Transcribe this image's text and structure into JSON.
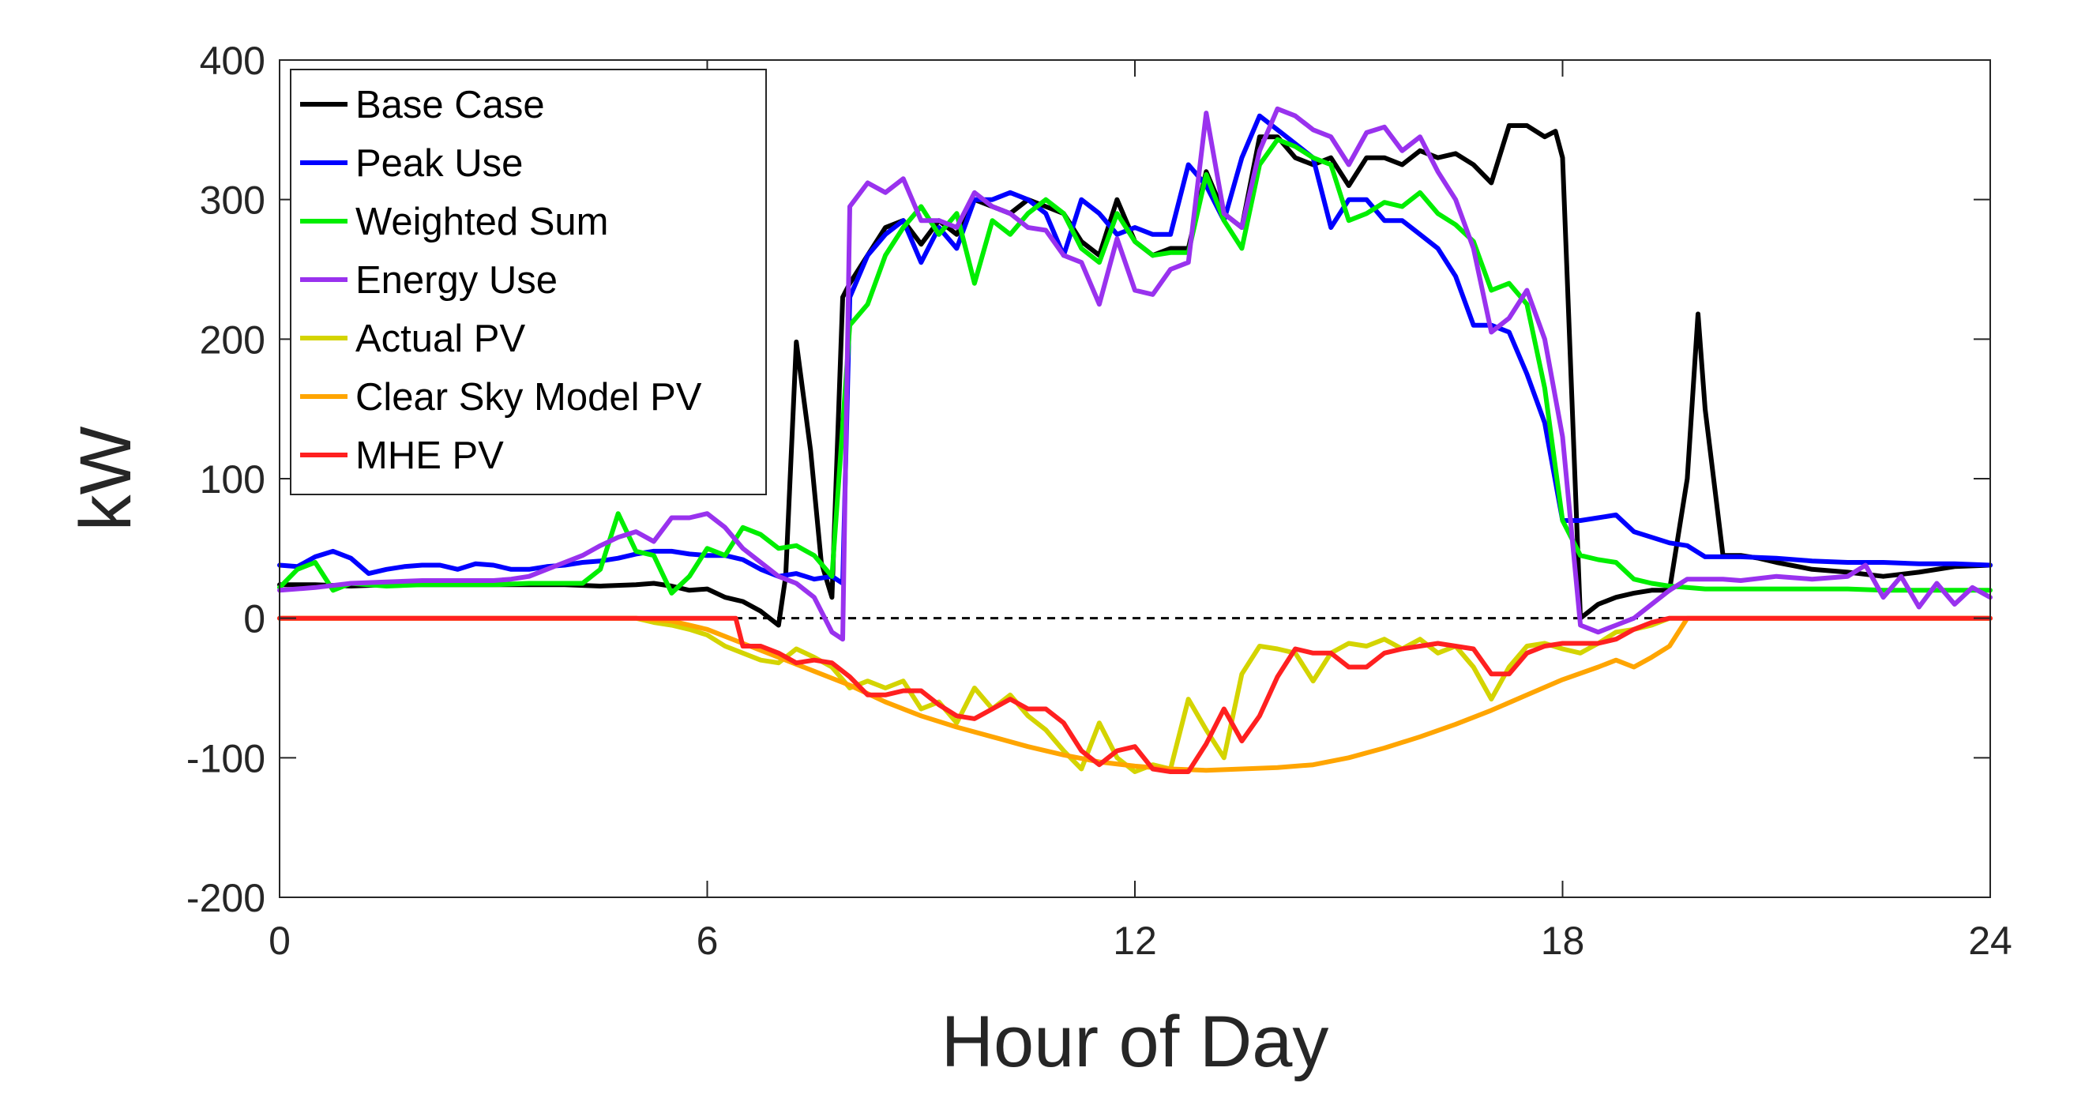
{
  "chart_data": {
    "type": "line",
    "xlabel": "Hour of Day",
    "ylabel": "kW",
    "xlim": [
      0,
      24
    ],
    "ylim": [
      -200,
      400
    ],
    "xticks": [
      0,
      6,
      12,
      18,
      24
    ],
    "xtick_labels": [
      "0",
      "6",
      "12",
      "18",
      "24"
    ],
    "yticks": [
      -200,
      -100,
      0,
      100,
      200,
      300,
      400
    ],
    "ytick_labels": [
      "-200",
      "-100",
      "0",
      "100",
      "200",
      "300",
      "400"
    ],
    "legend_position": "top-left",
    "zero_line": {
      "style": "dashed",
      "color": "#000000"
    },
    "series": [
      {
        "name": "Base Case",
        "color": "#000000",
        "x": [
          0,
          0.5,
          1,
          1.5,
          2,
          2.5,
          3,
          3.5,
          4,
          4.5,
          5,
          5.25,
          5.5,
          5.75,
          6,
          6.25,
          6.5,
          6.75,
          7,
          7.1,
          7.25,
          7.45,
          7.6,
          7.75,
          7.9,
          8,
          8.25,
          8.5,
          8.75,
          9,
          9.25,
          9.5,
          9.75,
          10,
          10.25,
          10.5,
          10.75,
          11,
          11.25,
          11.5,
          11.75,
          12,
          12.25,
          12.5,
          12.75,
          13,
          13.25,
          13.5,
          13.75,
          14,
          14.25,
          14.5,
          14.75,
          15,
          15.25,
          15.5,
          15.75,
          16,
          16.25,
          16.5,
          16.75,
          17,
          17.25,
          17.5,
          17.75,
          17.9,
          18,
          18.25,
          18.5,
          18.75,
          19,
          19.25,
          19.5,
          19.75,
          19.9,
          20,
          20.25,
          20.5,
          20.75,
          21,
          21.5,
          22,
          22.5,
          23,
          23.5,
          24
        ],
        "y": [
          24,
          24,
          23,
          24,
          24,
          24,
          24,
          24,
          24,
          23,
          24,
          25,
          23,
          20,
          21,
          15,
          12,
          5,
          -5,
          30,
          198,
          120,
          40,
          15,
          230,
          240,
          260,
          280,
          285,
          268,
          285,
          275,
          300,
          295,
          290,
          300,
          295,
          290,
          270,
          260,
          300,
          270,
          260,
          265,
          265,
          320,
          290,
          280,
          345,
          345,
          330,
          325,
          330,
          310,
          330,
          330,
          325,
          335,
          330,
          333,
          325,
          312,
          353,
          353,
          345,
          349,
          330,
          0,
          10,
          15,
          18,
          20,
          20,
          100,
          218,
          150,
          45,
          45,
          43,
          40,
          35,
          33,
          30,
          33,
          37,
          38
        ]
      },
      {
        "name": "Peak Use",
        "color": "#0000ff",
        "x": [
          0,
          0.25,
          0.5,
          0.75,
          1,
          1.25,
          1.5,
          1.75,
          2,
          2.25,
          2.5,
          2.75,
          3,
          3.25,
          3.5,
          3.75,
          4,
          4.25,
          4.5,
          4.75,
          5,
          5.25,
          5.5,
          5.75,
          6,
          6.25,
          6.5,
          6.75,
          7,
          7.25,
          7.5,
          7.75,
          7.9,
          8,
          8.25,
          8.5,
          8.75,
          9,
          9.25,
          9.5,
          9.75,
          10,
          10.25,
          10.5,
          10.75,
          11,
          11.25,
          11.5,
          11.75,
          12,
          12.25,
          12.5,
          12.75,
          13,
          13.25,
          13.5,
          13.75,
          14,
          14.25,
          14.5,
          14.75,
          15,
          15.25,
          15.5,
          15.75,
          16,
          16.25,
          16.5,
          16.75,
          17,
          17.25,
          17.5,
          17.75,
          18,
          18.25,
          18.5,
          18.75,
          19,
          19.25,
          19.5,
          19.75,
          20,
          20.25,
          20.5,
          21,
          21.5,
          22,
          22.5,
          23,
          23.5,
          24
        ],
        "y": [
          38,
          37,
          44,
          48,
          43,
          32,
          35,
          37,
          38,
          38,
          35,
          39,
          38,
          35,
          35,
          37,
          38,
          40,
          41,
          43,
          46,
          48,
          48,
          46,
          45,
          45,
          42,
          35,
          30,
          32,
          28,
          30,
          25,
          230,
          260,
          275,
          285,
          255,
          280,
          265,
          300,
          300,
          305,
          300,
          290,
          260,
          300,
          290,
          275,
          280,
          275,
          275,
          325,
          310,
          285,
          330,
          360,
          350,
          340,
          330,
          280,
          300,
          300,
          285,
          285,
          275,
          265,
          245,
          210,
          210,
          205,
          175,
          140,
          70,
          70,
          72,
          74,
          62,
          58,
          54,
          52,
          44,
          44,
          44,
          43,
          41,
          40,
          40,
          39,
          39,
          38
        ]
      },
      {
        "name": "Weighted Sum",
        "color": "#00ee00",
        "x": [
          0,
          0.25,
          0.5,
          0.75,
          1,
          1.25,
          1.5,
          2,
          2.5,
          3,
          3.5,
          4,
          4.25,
          4.5,
          4.75,
          5,
          5.25,
          5.5,
          5.75,
          6,
          6.25,
          6.5,
          6.75,
          7,
          7.25,
          7.5,
          7.75,
          8,
          8.25,
          8.5,
          8.75,
          9,
          9.25,
          9.5,
          9.75,
          10,
          10.25,
          10.5,
          10.75,
          11,
          11.25,
          11.5,
          11.75,
          12,
          12.25,
          12.5,
          12.75,
          13,
          13.25,
          13.5,
          13.75,
          14,
          14.25,
          14.5,
          14.75,
          15,
          15.25,
          15.5,
          15.75,
          16,
          16.25,
          16.5,
          16.75,
          17,
          17.25,
          17.5,
          17.75,
          18,
          18.25,
          18.5,
          18.75,
          19,
          19.25,
          19.5,
          19.75,
          20,
          20.5,
          21,
          21.5,
          22,
          22.5,
          23,
          23.5,
          24
        ],
        "y": [
          22,
          35,
          40,
          20,
          25,
          24,
          23,
          24,
          24,
          24,
          25,
          25,
          25,
          35,
          75,
          48,
          45,
          18,
          30,
          50,
          45,
          65,
          60,
          50,
          52,
          45,
          30,
          210,
          225,
          260,
          280,
          295,
          275,
          290,
          240,
          285,
          275,
          290,
          300,
          290,
          265,
          255,
          290,
          270,
          260,
          262,
          262,
          318,
          285,
          265,
          325,
          343,
          338,
          330,
          325,
          285,
          290,
          298,
          295,
          305,
          290,
          282,
          270,
          235,
          240,
          225,
          165,
          70,
          45,
          42,
          40,
          28,
          25,
          23,
          22,
          21,
          21,
          21,
          21,
          21,
          20,
          20,
          20,
          20
        ]
      },
      {
        "name": "Energy Use",
        "color": "#9932ee",
        "x": [
          0,
          0.5,
          1,
          1.5,
          2,
          2.5,
          3,
          3.25,
          3.5,
          3.75,
          4,
          4.25,
          4.5,
          4.75,
          5,
          5.25,
          5.5,
          5.75,
          6,
          6.25,
          6.5,
          6.75,
          7,
          7.25,
          7.5,
          7.75,
          7.9,
          8,
          8.25,
          8.5,
          8.75,
          9,
          9.25,
          9.5,
          9.75,
          10,
          10.25,
          10.5,
          10.75,
          11,
          11.25,
          11.5,
          11.75,
          12,
          12.25,
          12.5,
          12.75,
          13,
          13.25,
          13.5,
          13.75,
          14,
          14.25,
          14.5,
          14.75,
          15,
          15.25,
          15.5,
          15.75,
          16,
          16.25,
          16.5,
          16.75,
          17,
          17.25,
          17.5,
          17.75,
          18,
          18.25,
          18.5,
          18.75,
          19,
          19.25,
          19.5,
          19.75,
          20,
          20.25,
          20.5,
          21,
          21.5,
          22,
          22.25,
          22.5,
          22.75,
          23,
          23.25,
          23.5,
          23.75,
          24
        ],
        "y": [
          20,
          22,
          25,
          26,
          27,
          27,
          27,
          28,
          30,
          35,
          40,
          45,
          52,
          58,
          62,
          55,
          72,
          72,
          75,
          65,
          50,
          40,
          30,
          25,
          15,
          -10,
          -15,
          295,
          312,
          305,
          315,
          285,
          285,
          280,
          305,
          295,
          290,
          280,
          278,
          260,
          255,
          225,
          272,
          235,
          232,
          250,
          255,
          362,
          290,
          280,
          335,
          365,
          360,
          350,
          345,
          325,
          348,
          352,
          335,
          345,
          320,
          300,
          265,
          205,
          215,
          235,
          200,
          130,
          -5,
          -10,
          -5,
          0,
          10,
          20,
          28,
          28,
          28,
          27,
          30,
          28,
          30,
          38,
          15,
          30,
          8,
          25,
          10,
          22,
          15
        ]
      },
      {
        "name": "Actual PV",
        "color": "#d4d400",
        "x": [
          0,
          1,
          2,
          3,
          4,
          5,
          5.25,
          5.5,
          5.75,
          6,
          6.25,
          6.5,
          6.75,
          7,
          7.25,
          7.5,
          7.75,
          8,
          8.25,
          8.5,
          8.75,
          9,
          9.25,
          9.5,
          9.75,
          10,
          10.25,
          10.5,
          10.75,
          11,
          11.25,
          11.5,
          11.75,
          12,
          12.25,
          12.5,
          12.75,
          13,
          13.25,
          13.5,
          13.75,
          14,
          14.25,
          14.5,
          14.75,
          15,
          15.25,
          15.5,
          15.75,
          16,
          16.25,
          16.5,
          16.75,
          17,
          17.25,
          17.5,
          17.75,
          18,
          18.25,
          18.5,
          18.75,
          19,
          19.25,
          19.5,
          20,
          21,
          22,
          23,
          24
        ],
        "y": [
          0,
          0,
          0,
          0,
          0,
          0,
          -3,
          -5,
          -8,
          -12,
          -20,
          -25,
          -30,
          -32,
          -22,
          -28,
          -35,
          -50,
          -45,
          -50,
          -45,
          -65,
          -60,
          -75,
          -50,
          -65,
          -55,
          -70,
          -80,
          -95,
          -108,
          -75,
          -100,
          -110,
          -105,
          -108,
          -58,
          -80,
          -100,
          -40,
          -20,
          -22,
          -25,
          -45,
          -25,
          -18,
          -20,
          -15,
          -22,
          -15,
          -25,
          -20,
          -35,
          -58,
          -35,
          -20,
          -18,
          -22,
          -25,
          -18,
          -10,
          -8,
          -5,
          0,
          0,
          0,
          0,
          0,
          0
        ]
      },
      {
        "name": "Clear Sky Model PV",
        "color": "#ffa500",
        "x": [
          0,
          1,
          2,
          3,
          4,
          5,
          5.5,
          6,
          6.5,
          7,
          7.5,
          8,
          8.5,
          9,
          9.5,
          10,
          10.5,
          11,
          11.5,
          12,
          12.5,
          13,
          13.5,
          14,
          14.5,
          15,
          15.5,
          16,
          16.5,
          17,
          17.5,
          18,
          18.5,
          18.75,
          19,
          19.25,
          19.5,
          19.75,
          20,
          21,
          22,
          23,
          24
        ],
        "y": [
          0,
          0,
          0,
          0,
          0,
          0,
          -2,
          -8,
          -18,
          -28,
          -38,
          -48,
          -60,
          -70,
          -78,
          -85,
          -92,
          -98,
          -103,
          -106,
          -108,
          -109,
          -108,
          -107,
          -105,
          -100,
          -93,
          -85,
          -76,
          -66,
          -55,
          -44,
          -35,
          -30,
          -35,
          -28,
          -20,
          0,
          0,
          0,
          0,
          0,
          0
        ]
      },
      {
        "name": "MHE PV",
        "color": "#ff2020",
        "x": [
          0,
          1,
          2,
          3,
          4,
          5,
          6,
          6.4,
          6.5,
          6.75,
          7,
          7.25,
          7.5,
          7.75,
          8,
          8.25,
          8.5,
          8.75,
          9,
          9.25,
          9.5,
          9.75,
          10,
          10.25,
          10.5,
          10.75,
          11,
          11.25,
          11.5,
          11.75,
          12,
          12.25,
          12.5,
          12.75,
          13,
          13.25,
          13.5,
          13.75,
          14,
          14.25,
          14.5,
          14.75,
          15,
          15.25,
          15.5,
          15.75,
          16,
          16.25,
          16.5,
          16.75,
          17,
          17.25,
          17.5,
          17.75,
          18,
          18.25,
          18.5,
          18.75,
          19,
          19.25,
          19.5,
          20,
          21,
          22,
          23,
          24
        ],
        "y": [
          0,
          0,
          0,
          0,
          0,
          0,
          0,
          0,
          -20,
          -20,
          -25,
          -32,
          -30,
          -32,
          -42,
          -55,
          -55,
          -52,
          -52,
          -62,
          -70,
          -72,
          -65,
          -58,
          -65,
          -65,
          -75,
          -95,
          -105,
          -95,
          -92,
          -108,
          -110,
          -110,
          -90,
          -65,
          -88,
          -70,
          -42,
          -22,
          -25,
          -25,
          -35,
          -35,
          -25,
          -22,
          -20,
          -18,
          -20,
          -22,
          -40,
          -40,
          -25,
          -20,
          -18,
          -18,
          -18,
          -15,
          -8,
          -3,
          0,
          0,
          0,
          0,
          0,
          0
        ]
      }
    ]
  }
}
